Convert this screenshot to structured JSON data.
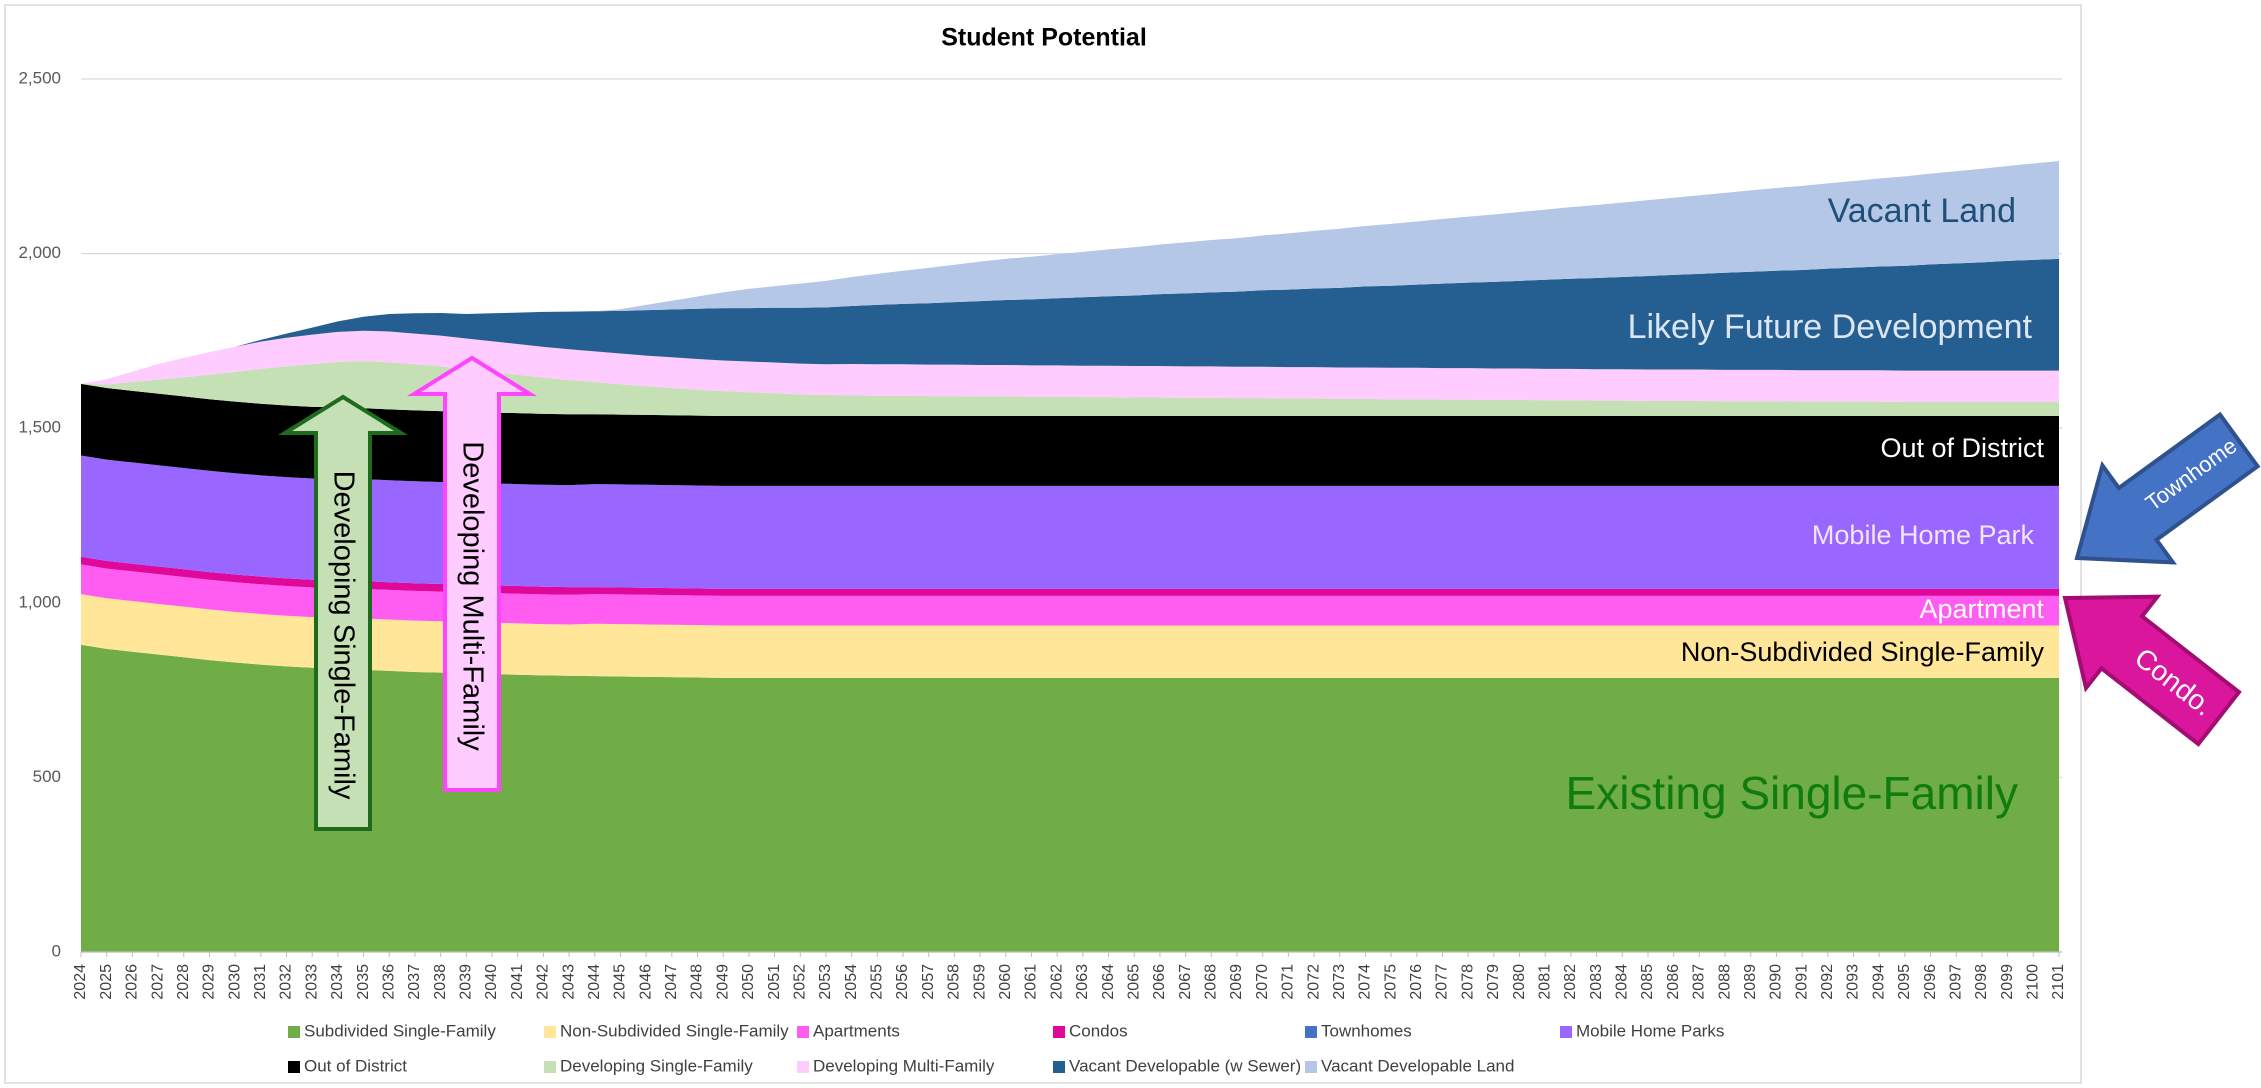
{
  "chart_data": {
    "type": "stacked_area",
    "title": "Student Potential",
    "x": [
      2024,
      2025,
      2026,
      2027,
      2028,
      2029,
      2030,
      2031,
      2032,
      2033,
      2034,
      2035,
      2036,
      2037,
      2038,
      2039,
      2040,
      2041,
      2042,
      2043,
      2044,
      2045,
      2046,
      2047,
      2048,
      2049,
      2050,
      2051,
      2052,
      2053,
      2054,
      2055,
      2056,
      2057,
      2058,
      2059,
      2060,
      2061,
      2062,
      2063,
      2064,
      2065,
      2066,
      2067,
      2068,
      2069,
      2070,
      2071,
      2072,
      2073,
      2074,
      2075,
      2076,
      2077,
      2078,
      2079,
      2080,
      2081,
      2082,
      2083,
      2084,
      2085,
      2086,
      2087,
      2088,
      2089,
      2090,
      2091,
      2092,
      2093,
      2094,
      2095,
      2096,
      2097,
      2098,
      2099,
      2100,
      2101
    ],
    "xlim": [
      2024,
      2101
    ],
    "ylim": [
      0,
      2500
    ],
    "yticks": [
      0,
      500,
      {
        "value": 1000,
        "label": "1,000"
      },
      {
        "value": 1500,
        "label": "1,500"
      },
      {
        "value": 2000,
        "label": "2,000"
      },
      {
        "value": 2500,
        "label": "2,500"
      }
    ],
    "grid": true,
    "legend": "bottom",
    "series": [
      {
        "name": "Subdivided Single-Family",
        "color": "#70ad47",
        "values": [
          880,
          868,
          860,
          852,
          844,
          836,
          829,
          823,
          818,
          814,
          811,
          808,
          805,
          802,
          800,
          798,
          796,
          794,
          792,
          791,
          790,
          789,
          788,
          787,
          786,
          785,
          785,
          785,
          785,
          785,
          785,
          785,
          785,
          785,
          785,
          785,
          785,
          785,
          785,
          785,
          785,
          785,
          785,
          785,
          785,
          785,
          785,
          785,
          785,
          785,
          785,
          785,
          785,
          785,
          785,
          785,
          785,
          785,
          785,
          785,
          785,
          785,
          785,
          785,
          785,
          785,
          785,
          785,
          785,
          785,
          785,
          785,
          785,
          785,
          785,
          785,
          785,
          785
        ]
      },
      {
        "name": "Non-Subdivided Single-Family",
        "color": "#ffe699",
        "values": [
          145,
          145,
          145,
          145,
          145,
          145,
          145,
          145,
          145,
          145,
          147,
          147,
          147,
          147,
          147,
          147,
          147,
          147,
          147,
          147,
          150,
          150,
          150,
          150,
          150,
          150,
          150,
          150,
          150,
          150,
          150,
          150,
          150,
          150,
          150,
          150,
          150,
          150,
          150,
          150,
          150,
          150,
          150,
          150,
          150,
          150,
          150,
          150,
          150,
          150,
          150,
          150,
          150,
          150,
          150,
          150,
          150,
          150,
          150,
          150,
          150,
          150,
          150,
          150,
          150,
          150,
          150,
          150,
          150,
          150,
          150,
          150,
          150,
          150,
          150,
          150,
          150,
          150
        ]
      },
      {
        "name": "Apartments",
        "color": "#ff5cf2",
        "values": [
          85,
          85,
          85,
          85,
          85,
          85,
          85,
          85,
          85,
          85,
          85,
          85,
          85,
          85,
          85,
          85,
          85,
          85,
          85,
          85,
          85,
          85,
          85,
          85,
          85,
          85,
          85,
          85,
          85,
          85,
          85,
          85,
          85,
          85,
          85,
          85,
          85,
          85,
          85,
          85,
          85,
          85,
          85,
          85,
          85,
          85,
          85,
          85,
          85,
          85,
          85,
          85,
          85,
          85,
          85,
          85,
          85,
          85,
          85,
          85,
          85,
          85,
          85,
          85,
          85,
          85,
          85,
          85,
          85,
          85,
          85,
          85,
          85,
          85,
          85,
          85,
          85,
          85
        ]
      },
      {
        "name": "Condos",
        "color": "#e0089a",
        "values": [
          22,
          22,
          22,
          22,
          22,
          22,
          22,
          22,
          22,
          22,
          22,
          22,
          22,
          22,
          22,
          22,
          22,
          22,
          22,
          22,
          20,
          20,
          20,
          20,
          20,
          20,
          20,
          20,
          20,
          20,
          20,
          20,
          20,
          20,
          20,
          20,
          20,
          20,
          20,
          20,
          20,
          20,
          20,
          20,
          20,
          20,
          20,
          20,
          20,
          20,
          20,
          20,
          20,
          20,
          20,
          20,
          20,
          20,
          20,
          20,
          20,
          20,
          20,
          20,
          20,
          20,
          20,
          20,
          20,
          20,
          20,
          20,
          20,
          20,
          20,
          20,
          20,
          20
        ]
      },
      {
        "name": "Townhomes",
        "color": "#4472c4",
        "values": [
          0,
          0,
          0,
          0,
          0,
          0,
          0,
          0,
          0,
          0,
          0,
          0,
          0,
          0,
          0,
          0,
          0,
          0,
          0,
          0,
          0,
          0,
          0,
          0,
          0,
          0,
          0,
          0,
          0,
          0,
          0,
          0,
          0,
          0,
          0,
          0,
          0,
          0,
          0,
          0,
          0,
          0,
          0,
          0,
          0,
          0,
          0,
          0,
          0,
          0,
          0,
          0,
          0,
          0,
          0,
          0,
          0,
          0,
          0,
          0,
          0,
          0,
          0,
          0,
          0,
          0,
          0,
          0,
          0,
          0,
          0,
          0,
          0,
          0,
          0,
          0,
          0,
          0
        ]
      },
      {
        "name": "Mobile Home Parks",
        "color": "#9966ff",
        "values": [
          290,
          290,
          290,
          290,
          290,
          290,
          290,
          290,
          290,
          290,
          292,
          292,
          292,
          292,
          292,
          292,
          292,
          292,
          292,
          292,
          295,
          295,
          295,
          295,
          295,
          295,
          295,
          295,
          295,
          295,
          295,
          295,
          295,
          295,
          295,
          295,
          295,
          295,
          295,
          295,
          295,
          295,
          295,
          295,
          295,
          295,
          295,
          295,
          295,
          295,
          295,
          295,
          295,
          295,
          295,
          295,
          295,
          295,
          295,
          295,
          295,
          295,
          295,
          295,
          295,
          295,
          295,
          295,
          295,
          295,
          295,
          295,
          295,
          295,
          295,
          295,
          295,
          295
        ]
      },
      {
        "name": "Out of District",
        "color": "#000000",
        "values": [
          205,
          205,
          205,
          205,
          205,
          205,
          205,
          205,
          205,
          205,
          203,
          203,
          203,
          203,
          203,
          203,
          203,
          203,
          203,
          203,
          200,
          200,
          200,
          200,
          200,
          200,
          200,
          200,
          200,
          200,
          200,
          200,
          200,
          200,
          200,
          200,
          200,
          200,
          200,
          200,
          200,
          200,
          200,
          200,
          200,
          200,
          200,
          200,
          200,
          200,
          200,
          200,
          200,
          200,
          200,
          200,
          200,
          200,
          200,
          200,
          200,
          200,
          200,
          200,
          200,
          200,
          200,
          200,
          200,
          200,
          200,
          200,
          200,
          200,
          200,
          200,
          200,
          200
        ]
      },
      {
        "name": "Developing Single-Family",
        "color": "#c5e0b4",
        "values": [
          0,
          10,
          25,
          40,
          55,
          70,
          85,
          100,
          112,
          122,
          130,
          135,
          135,
          132,
          128,
          122,
          116,
          110,
          104,
          98,
          92,
          87,
          82,
          78,
          74,
          71,
          68,
          65,
          62,
          60,
          59,
          58,
          58,
          57,
          57,
          56,
          56,
          55,
          55,
          54,
          54,
          53,
          53,
          52,
          52,
          51,
          51,
          50,
          50,
          49,
          49,
          48,
          48,
          47,
          47,
          46,
          46,
          45,
          45,
          44,
          44,
          43,
          43,
          43,
          42,
          42,
          42,
          41,
          41,
          41,
          41,
          40,
          40,
          40,
          40,
          40,
          40,
          40
        ]
      },
      {
        "name": "Developing Multi-Family",
        "color": "#ffccff",
        "values": [
          0,
          15,
          30,
          45,
          55,
          65,
          72,
          78,
          82,
          85,
          86,
          87,
          88,
          88,
          88,
          88,
          88,
          88,
          88,
          88,
          88,
          88,
          88,
          88,
          88,
          88,
          88,
          88,
          88,
          88,
          90,
          90,
          90,
          90,
          90,
          90,
          90,
          90,
          90,
          90,
          90,
          90,
          90,
          90,
          90,
          90,
          90,
          90,
          90,
          90,
          90,
          90,
          90,
          90,
          90,
          90,
          90,
          90,
          90,
          90,
          90,
          90,
          90,
          90,
          90,
          90,
          90,
          90,
          90,
          90,
          90,
          90,
          90,
          90,
          90,
          90,
          90,
          90
        ]
      },
      {
        "name": "Vacant Developable (w Sewer)",
        "color": "#255e91",
        "values": [
          0,
          0,
          0,
          0,
          0,
          0,
          0,
          5,
          12,
          20,
          30,
          40,
          50,
          58,
          65,
          70,
          80,
          90,
          100,
          108,
          115,
          122,
          130,
          137,
          144,
          150,
          153,
          157,
          160,
          163,
          166,
          170,
          173,
          176,
          179,
          183,
          186,
          189,
          192,
          196,
          199,
          202,
          206,
          209,
          212,
          215,
          219,
          222,
          225,
          228,
          232,
          235,
          238,
          242,
          245,
          248,
          251,
          255,
          258,
          261,
          264,
          268,
          271,
          274,
          278,
          281,
          284,
          287,
          291,
          294,
          297,
          300,
          304,
          307,
          310,
          314,
          317,
          320
        ]
      },
      {
        "name": "Vacant Developable Land",
        "color": "#b4c7e7",
        "values": [
          0,
          0,
          0,
          0,
          0,
          0,
          0,
          0,
          0,
          0,
          0,
          0,
          0,
          0,
          0,
          0,
          0,
          0,
          0,
          0,
          0,
          5,
          15,
          25,
          35,
          45,
          55,
          62,
          69,
          76,
          83,
          89,
          95,
          101,
          107,
          113,
          118,
          122,
          126,
          130,
          134,
          138,
          142,
          146,
          150,
          153,
          157,
          161,
          165,
          169,
          173,
          177,
          181,
          185,
          189,
          193,
          197,
          201,
          205,
          209,
          213,
          217,
          221,
          225,
          229,
          233,
          237,
          241,
          244,
          248,
          252,
          256,
          260,
          264,
          268,
          272,
          276,
          280
        ]
      }
    ],
    "annotations": [
      {
        "text": "Vacant Land"
      },
      {
        "text": "Likely Future Development"
      },
      {
        "text": "Out of District"
      },
      {
        "text": "Mobile Home Park"
      },
      {
        "text": "Apartment"
      },
      {
        "text": "Non-Subdivided Single-Family"
      },
      {
        "text": "Existing Single-Family"
      },
      {
        "text": "Developing Single-Family"
      },
      {
        "text": "Developing Multi-Family"
      },
      {
        "text": "Townhome"
      },
      {
        "text": "Condo."
      }
    ]
  }
}
